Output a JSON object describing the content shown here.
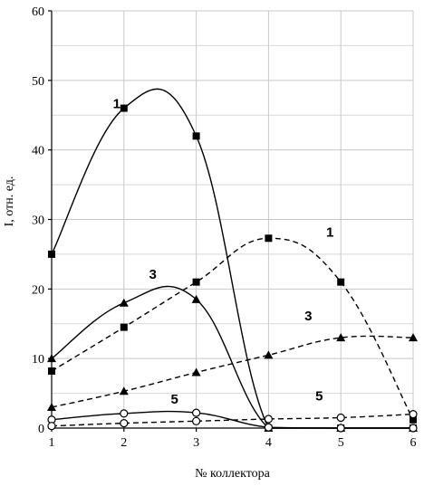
{
  "chart_data": {
    "type": "line",
    "title": "",
    "xlabel": "№ коллектора",
    "ylabel": "I, отн. ед.",
    "x": [
      1,
      2,
      3,
      4,
      5,
      6
    ],
    "xlim": [
      1,
      6
    ],
    "ylim": [
      0,
      60
    ],
    "y_ticks": [
      0,
      10,
      20,
      30,
      40,
      50,
      60
    ],
    "x_ticks": [
      1,
      2,
      3,
      4,
      5,
      6
    ],
    "grid": true,
    "series": [
      {
        "name": "1",
        "style": "solid",
        "marker": "square",
        "color": "#000000",
        "values": [
          25,
          46,
          42,
          0,
          0,
          0
        ]
      },
      {
        "name": "3",
        "style": "solid",
        "marker": "triangle",
        "color": "#000000",
        "values": [
          10,
          18,
          18.5,
          0,
          0,
          0
        ]
      },
      {
        "name": "5",
        "style": "solid",
        "marker": "circle",
        "color": "#000000",
        "values": [
          1.2,
          2.1,
          2.2,
          0.1,
          0,
          0
        ]
      },
      {
        "name": "1",
        "style": "dashed",
        "marker": "square",
        "color": "#000000",
        "values": [
          8.2,
          14.5,
          21,
          27.3,
          21,
          1.2
        ]
      },
      {
        "name": "3",
        "style": "dashed",
        "marker": "triangle",
        "color": "#000000",
        "values": [
          3,
          5.3,
          8,
          10.5,
          13,
          13
        ]
      },
      {
        "name": "5",
        "style": "dashed",
        "marker": "circle",
        "color": "#000000",
        "values": [
          0.3,
          0.7,
          1,
          1.3,
          1.5,
          2
        ]
      }
    ],
    "annotations": [
      {
        "text": "1",
        "x": 1.9,
        "y": 46
      },
      {
        "text": "3",
        "x": 2.4,
        "y": 21.5
      },
      {
        "text": "5",
        "x": 2.7,
        "y": 3.5
      },
      {
        "text": "1",
        "x": 4.85,
        "y": 27.5
      },
      {
        "text": "3",
        "x": 4.55,
        "y": 15.5
      },
      {
        "text": "5",
        "x": 4.7,
        "y": 4
      }
    ]
  }
}
